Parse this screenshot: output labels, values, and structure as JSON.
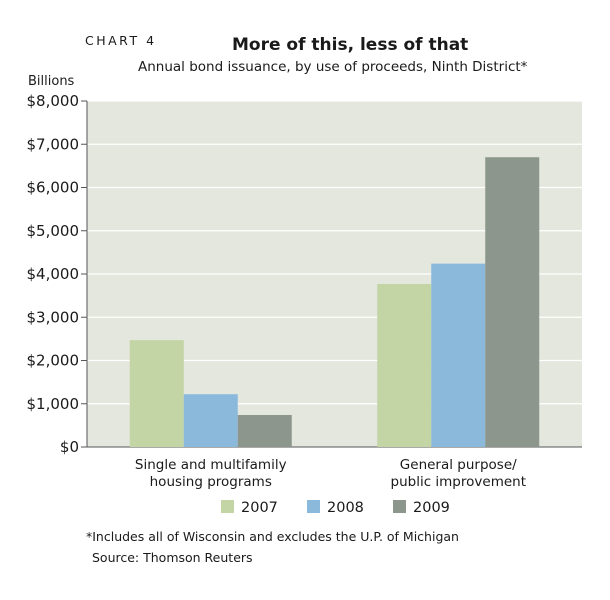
{
  "header": {
    "chart_number": "CHART 4",
    "title": "More of this, less of that",
    "subtitle": "Annual bond issuance, by use of proceeds, Ninth District*",
    "unit_label": "Billions"
  },
  "footer": {
    "note": "*Includes all of Wisconsin and excludes the U.P. of Michigan",
    "source": "Source: Thomson Reuters"
  },
  "chart_data": {
    "type": "bar",
    "title": "More of this, less of that",
    "subtitle": "Annual bond issuance, by use of proceeds, Ninth District*",
    "ylabel": "Billions",
    "xlabel": "",
    "categories": [
      [
        "Single and multifamily",
        "housing programs"
      ],
      [
        "General purpose/",
        "public improvement"
      ]
    ],
    "series": [
      {
        "name": "2007",
        "color": "#c3d4a5",
        "values": [
          2470,
          3770
        ]
      },
      {
        "name": "2008",
        "color": "#8ab9dc",
        "values": [
          1220,
          4240
        ]
      },
      {
        "name": "2009",
        "color": "#8c968c",
        "values": [
          740,
          6700
        ]
      }
    ],
    "ylim": [
      0,
      8000
    ],
    "yticks": [
      0,
      1000,
      2000,
      3000,
      4000,
      5000,
      6000,
      7000,
      8000
    ],
    "ytick_labels": [
      "$0",
      "$1,000",
      "$2,000",
      "$3,000",
      "$4,000",
      "$5,000",
      "$6,000",
      "$7,000",
      "$8,000"
    ],
    "grid": true,
    "plot_background": "#e4e7de",
    "grid_color": "#ffffff",
    "legend_position": "bottom"
  }
}
